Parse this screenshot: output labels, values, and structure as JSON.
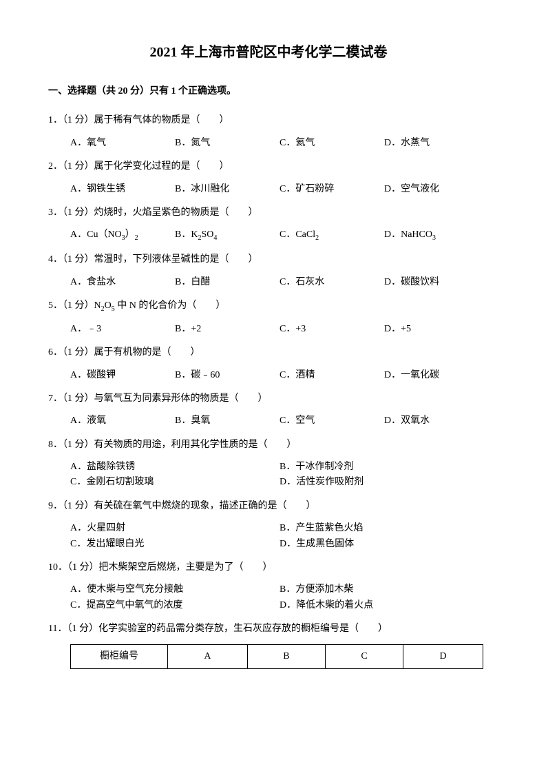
{
  "title": "2021 年上海市普陀区中考化学二模试卷",
  "section_header": "一、选择题（共 20 分）只有 1 个正确选项。",
  "questions": [
    {
      "num": "1．",
      "points": "（1 分）",
      "stem": "属于稀有气体的物质是（　　）",
      "layout": "cols4",
      "options": [
        "A．氧气",
        "B．氮气",
        "C．氦气",
        "D．水蒸气"
      ]
    },
    {
      "num": "2．",
      "points": "（1 分）",
      "stem": "属于化学变化过程的是（　　）",
      "layout": "cols4",
      "options": [
        "A．钢铁生锈",
        "B．冰川融化",
        "C．矿石粉碎",
        "D．空气液化"
      ]
    },
    {
      "num": "3．",
      "points": "（1 分）",
      "stem": "灼烧时，火焰呈紫色的物质是（　　）",
      "layout": "cols4",
      "options_html": [
        "A．Cu（NO<span class=\"sub\">3</span>）<span class=\"sub\">2</span>",
        "B．K<span class=\"sub\">2</span>SO<span class=\"sub\">4</span>",
        "C．CaCl<span class=\"sub\">2</span>",
        "D．NaHCO<span class=\"sub\">3</span>"
      ]
    },
    {
      "num": "4．",
      "points": "（1 分）",
      "stem": "常温时，下列液体呈碱性的是（　　）",
      "layout": "cols4",
      "options": [
        "A．食盐水",
        "B．白醋",
        "C．石灰水",
        "D．碳酸饮料"
      ]
    },
    {
      "num": "5．",
      "points": "（1 分）",
      "stem_html": "N<span class=\"sub\">2</span>O<span class=\"sub\">5</span> 中 N 的化合价为（　　）",
      "layout": "cols4",
      "options": [
        "A．﹣3",
        "B．+2",
        "C．+3",
        "D．+5"
      ]
    },
    {
      "num": "6．",
      "points": "（1 分）",
      "stem": "属于有机物的是（　　）",
      "layout": "cols4",
      "options": [
        "A．碳酸钾",
        "B．碳﹣60",
        "C．酒精",
        "D．一氧化碳"
      ]
    },
    {
      "num": "7．",
      "points": "（1 分）",
      "stem": "与氧气互为同素异形体的物质是（　　）",
      "layout": "cols4",
      "options": [
        "A．液氧",
        "B．臭氧",
        "C．空气",
        "D．双氧水"
      ]
    },
    {
      "num": "8．",
      "points": "（1 分）",
      "stem": "有关物质的用途，利用其化学性质的是（　　）",
      "layout": "cols2",
      "options": [
        "A．盐酸除铁锈",
        "B．干冰作制冷剂",
        "C．金刚石切割玻璃",
        "D．活性炭作吸附剂"
      ]
    },
    {
      "num": "9．",
      "points": "（1 分）",
      "stem": "有关硫在氧气中燃烧的现象，描述正确的是（　　）",
      "layout": "cols2",
      "options": [
        "A．火星四射",
        "B．产生蓝紫色火焰",
        "C．发出耀眼白光",
        "D．生成黑色固体"
      ]
    },
    {
      "num": "10．",
      "points": "（1 分）",
      "stem": "把木柴架空后燃烧，主要是为了（　　）",
      "layout": "cols2",
      "options": [
        "A．使木柴与空气充分接触",
        "B．方便添加木柴",
        "C．提高空气中氧气的浓度",
        "D．降低木柴的着火点"
      ]
    },
    {
      "num": "11．",
      "points": "（1 分）",
      "stem": "化学实验室的药品需分类存放，生石灰应存放的橱柜编号是（　　）",
      "has_table": true,
      "table": {
        "row_label": "橱柜编号",
        "cells": [
          "A",
          "B",
          "C",
          "D"
        ]
      }
    }
  ]
}
